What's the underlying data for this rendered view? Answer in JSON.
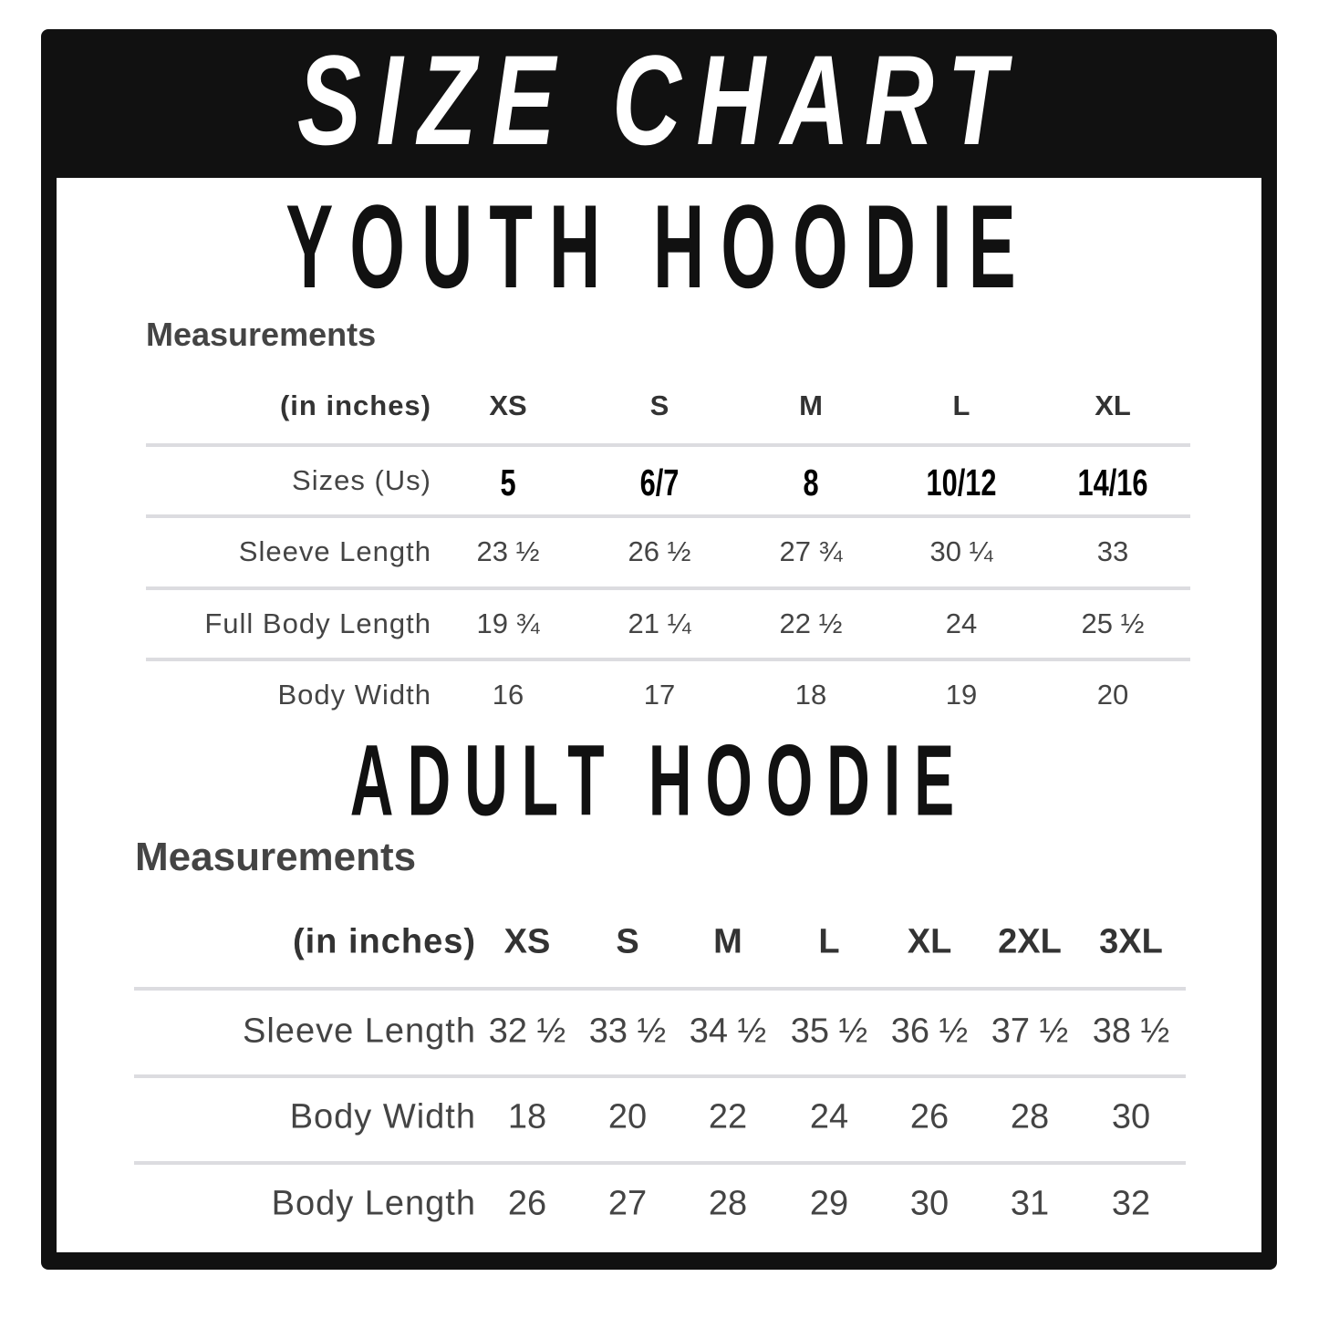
{
  "header": {
    "title": "SIZE CHART"
  },
  "youth": {
    "title": "YOUTH HOODIE",
    "caption": "Measurements",
    "columns": [
      "(in inches)",
      "XS",
      "S",
      "M",
      "L",
      "XL"
    ],
    "rows": [
      [
        "Sizes (Us)",
        "5",
        "6/7",
        "8",
        "10/12",
        "14/16"
      ],
      [
        "Sleeve Length",
        "23 ½",
        "26 ½",
        "27 ¾",
        "30 ¼",
        "33"
      ],
      [
        "Full Body Length",
        "19 ¾",
        "21 ¼",
        "22 ½",
        "24",
        "25 ½"
      ],
      [
        "Body Width",
        "16",
        "17",
        "18",
        "19",
        "20"
      ]
    ]
  },
  "adult": {
    "title": "ADULT HOODIE",
    "caption": "Measurements",
    "columns": [
      "(in inches)",
      "XS",
      "S",
      "M",
      "L",
      "XL",
      "2XL",
      "3XL"
    ],
    "rows": [
      [
        "Sleeve Length",
        "32 ½",
        "33 ½",
        "34 ½",
        "35 ½",
        "36 ½",
        "37 ½",
        "38 ½"
      ],
      [
        "Body Width",
        "18",
        "20",
        "22",
        "24",
        "26",
        "28",
        "30"
      ],
      [
        "Body Length",
        "26",
        "27",
        "28",
        "29",
        "30",
        "31",
        "32"
      ]
    ]
  }
}
